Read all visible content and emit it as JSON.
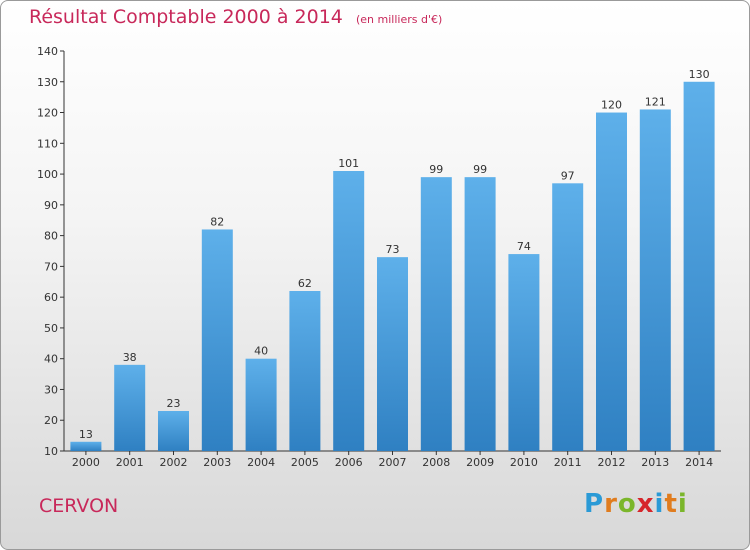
{
  "header": {
    "title": "Résultat Comptable 2000 à 2014",
    "unit": "(en milliers d'€)"
  },
  "commune": "CERVON",
  "logo": {
    "text": "Proxiti",
    "letters": [
      "P",
      "r",
      "o",
      "x",
      "i",
      "t",
      "i"
    ],
    "colors": [
      "#2a9ad6",
      "#e07c1e",
      "#7bb62b",
      "#d6262b",
      "#2a9ad6",
      "#e07c1e",
      "#7bb62b"
    ]
  },
  "colors": {
    "accent": "#c8285a",
    "bar_light": "#5eb0ea",
    "bar_dark": "#2f80c2"
  },
  "chart_data": {
    "type": "bar",
    "title": "Résultat Comptable 2000 à 2014",
    "xlabel": "",
    "ylabel": "",
    "categories": [
      "2000",
      "2001",
      "2002",
      "2003",
      "2004",
      "2005",
      "2006",
      "2007",
      "2008",
      "2009",
      "2010",
      "2011",
      "2012",
      "2013",
      "2014"
    ],
    "values": [
      13,
      38,
      23,
      82,
      40,
      62,
      101,
      73,
      99,
      99,
      74,
      97,
      120,
      121,
      130
    ],
    "ylim": [
      10,
      140
    ],
    "yticks": [
      10,
      20,
      30,
      40,
      50,
      60,
      70,
      80,
      90,
      100,
      110,
      120,
      130,
      140
    ],
    "grid": false,
    "legend": "none"
  }
}
